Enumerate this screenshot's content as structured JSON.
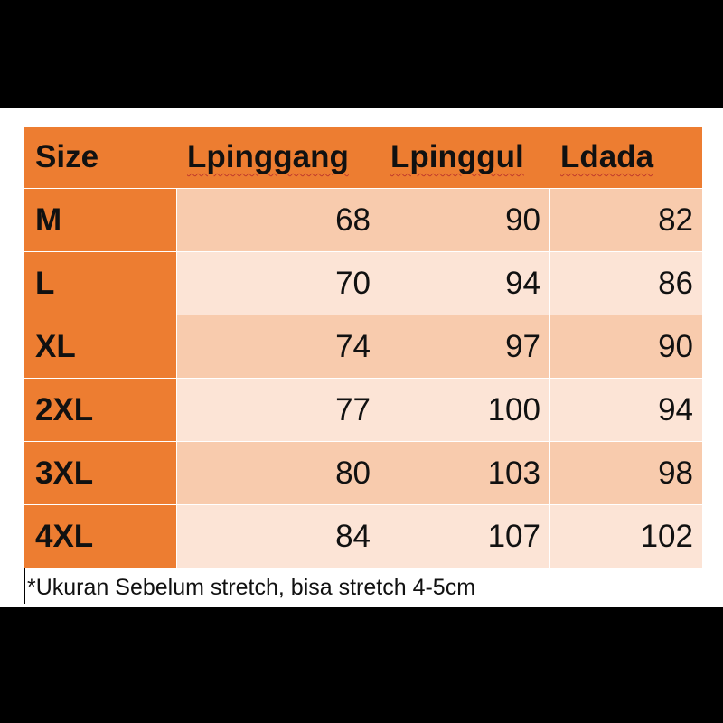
{
  "table": {
    "header": [
      "Size",
      "Lpinggang",
      "Lpinggul",
      "Ldada"
    ],
    "rows": [
      [
        "M",
        "68",
        "90",
        "82"
      ],
      [
        "L",
        "70",
        "94",
        "86"
      ],
      [
        "XL",
        "74",
        "97",
        "90"
      ],
      [
        "2XL",
        "77",
        "100",
        "94"
      ],
      [
        "3XL",
        "80",
        "103",
        "98"
      ],
      [
        "4XL",
        "84",
        "107",
        "102"
      ]
    ]
  },
  "footnote": "*Ukuran Sebelum stretch, bisa stretch 4-5cm"
}
